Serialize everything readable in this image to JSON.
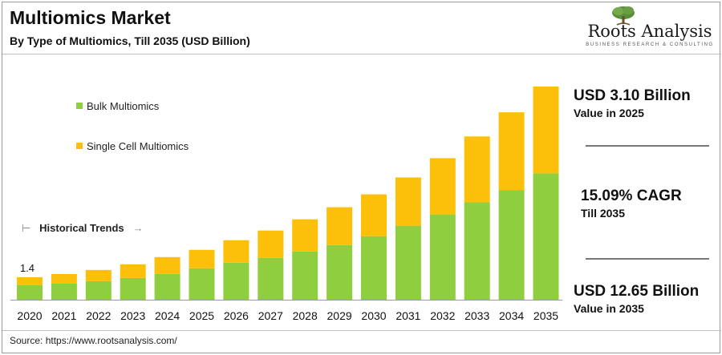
{
  "header": {
    "title": "Multiomics Market",
    "subtitle": "By Type of Multiomics, Till 2035 (USD Billion)"
  },
  "logo": {
    "name": "Roots Analysis",
    "tagline": "BUSINESS RESEARCH & CONSULTING"
  },
  "legend": {
    "bulk": "Bulk Multiomics",
    "single_cell": "Single Cell Multiomics"
  },
  "annotations": {
    "historical_trends": "Historical Trends",
    "start_value": "1.4"
  },
  "stats": {
    "stat1_value": "USD 3.10 Billion",
    "stat1_label": "Value in 2025",
    "stat2_value": "15.09% CAGR",
    "stat2_label": "Till 2035",
    "stat3_value": "USD 12.65 Billion",
    "stat3_label": "Value in 2035"
  },
  "source": "Source: https://www.rootsanalysis.com/",
  "colors": {
    "bulk": "#8fce3e",
    "single_cell": "#fdc00a",
    "divider": "#777777"
  },
  "chart_data": {
    "type": "bar",
    "stacked": true,
    "title": "Multiomics Market",
    "subtitle": "By Type of Multiomics, Till 2035 (USD Billion)",
    "categories": [
      "2020",
      "2021",
      "2022",
      "2023",
      "2024",
      "2025",
      "2026",
      "2027",
      "2028",
      "2029",
      "2030",
      "2031",
      "2032",
      "2033",
      "2034",
      "2035"
    ],
    "series": [
      {
        "name": "Bulk Multiomics",
        "color": "#8fce3e",
        "values": [
          0.9,
          1.0,
          1.15,
          1.35,
          1.6,
          1.95,
          2.3,
          2.6,
          3.0,
          3.4,
          3.95,
          4.6,
          5.3,
          6.05,
          6.8,
          7.85
        ]
      },
      {
        "name": "Single Cell Multiomics",
        "color": "#fdc00a",
        "values": [
          0.5,
          0.6,
          0.7,
          0.85,
          1.05,
          1.15,
          1.4,
          1.7,
          2.0,
          2.35,
          2.6,
          3.0,
          3.5,
          4.1,
          4.85,
          5.4
        ]
      }
    ],
    "ylim": [
      0,
      13.5
    ],
    "grid": false,
    "legend_position": "top-left",
    "xlabel": "",
    "ylabel": ""
  }
}
